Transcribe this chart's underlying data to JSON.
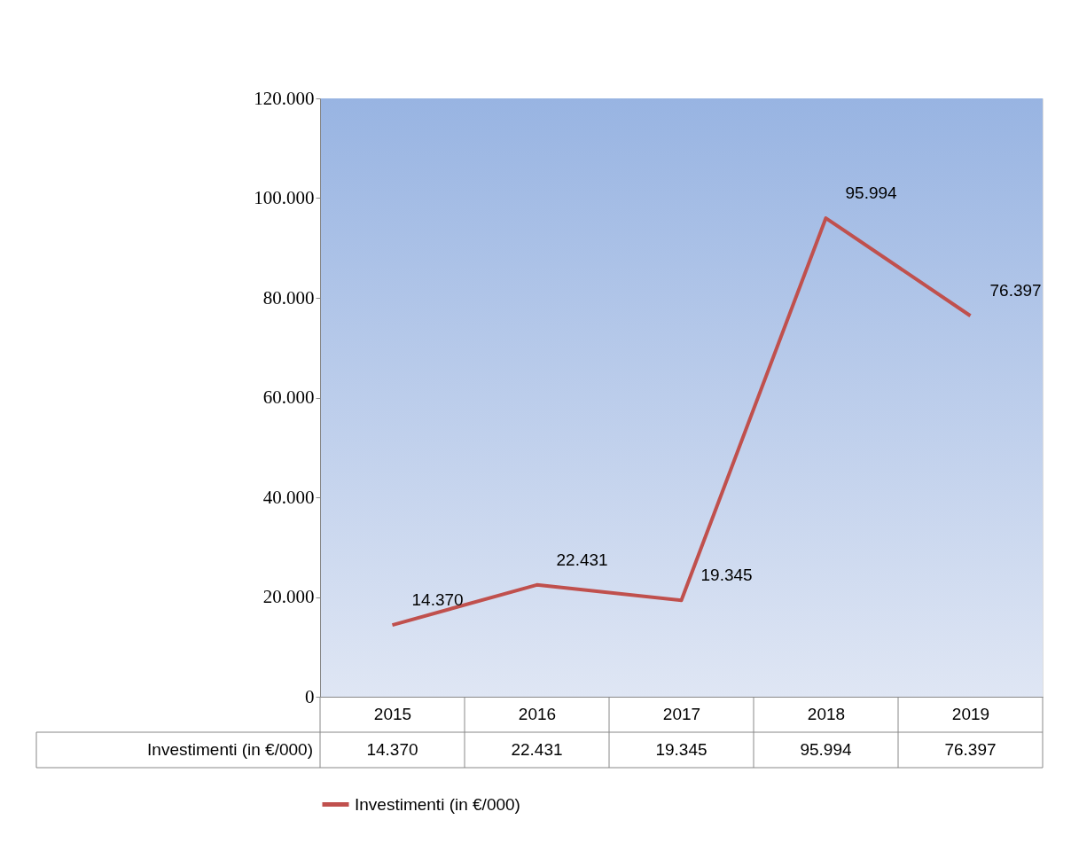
{
  "chart_data": {
    "type": "line",
    "categories": [
      "2015",
      "2016",
      "2017",
      "2018",
      "2019"
    ],
    "series": [
      {
        "name": "Investimenti (in €/000)",
        "color": "#c0504d",
        "values": [
          14370,
          22431,
          19345,
          95994,
          76397
        ],
        "value_labels": [
          "14.370",
          "22.431",
          "19.345",
          "95.994",
          "76.397"
        ]
      }
    ],
    "ylim": [
      0,
      120000
    ],
    "yticks": [
      0,
      {
        "value": 20000,
        "label": "20.000"
      },
      {
        "value": 40000,
        "label": "40.000"
      },
      {
        "value": 60000,
        "label": "60.000"
      },
      {
        "value": 80000,
        "label": "80.000"
      },
      {
        "value": 100000,
        "label": "100.000"
      },
      {
        "value": 120000,
        "label": "120.000"
      }
    ],
    "grid": false,
    "legend": "bottom",
    "marker": "none",
    "line_style": "solid"
  }
}
